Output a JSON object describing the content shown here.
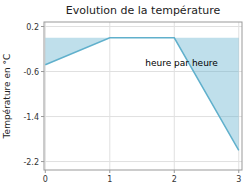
{
  "chart_data": {
    "type": "area",
    "title": "Evolution de la température",
    "y_label": "Température en °C",
    "x": [
      0,
      1,
      2,
      3
    ],
    "values": [
      -0.48,
      0.0,
      0.0,
      -2.0
    ],
    "color": "#60b0cc",
    "xlim": [
      -0.02,
      3.05
    ],
    "ylim": [
      -2.35,
      0.28
    ],
    "xticks": [
      0,
      1,
      2,
      3
    ],
    "yticks": [
      0.2,
      -0.6,
      -1.4,
      -2.2
    ],
    "grid": true,
    "annotations": [
      {
        "text": "heure par heure",
        "x": 1.55,
        "y": -0.38
      }
    ]
  }
}
